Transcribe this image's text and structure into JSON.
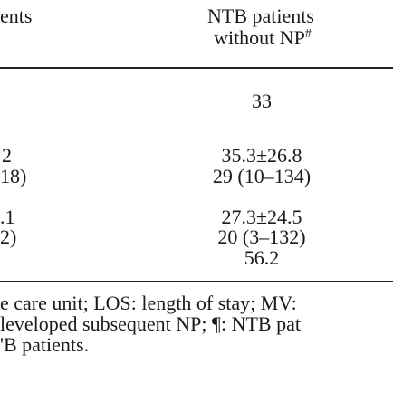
{
  "table": {
    "header": {
      "left": "ents",
      "right_line1": "NTB patients",
      "right_line2": "without NP",
      "right_mark": "#"
    },
    "rows": [
      [
        "",
        "33"
      ],
      [
        "2",
        "35.3±26.8"
      ],
      [
        "18)",
        "29 (10–134)"
      ],
      [
        ".1",
        "27.3±24.5"
      ],
      [
        "2)",
        "20 (3–132)"
      ],
      [
        "",
        "56.2"
      ]
    ]
  },
  "footnote": [
    "e care unit; LOS: length of stay; MV:",
    "leveloped subsequent NP; ¶: NTB pat",
    "'B patients."
  ]
}
